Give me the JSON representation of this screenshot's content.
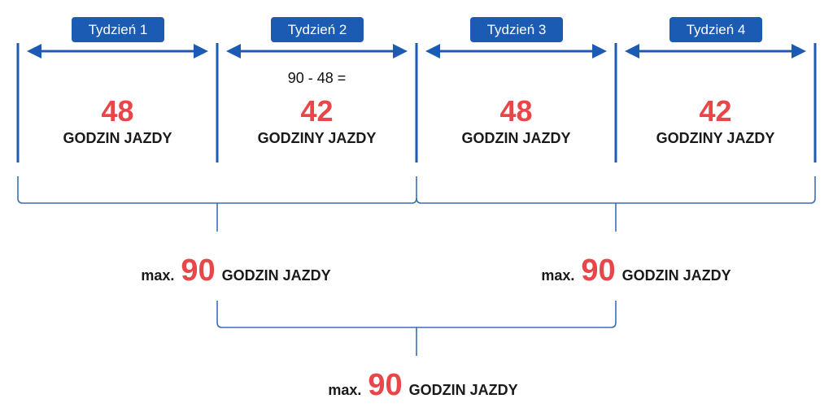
{
  "colors": {
    "accent": "#1c5bb3",
    "highlight": "#e8474a",
    "text": "#1a1a1a"
  },
  "weeks": [
    {
      "tag": "Tydzień 1",
      "equation": "",
      "value": "48",
      "label": "GODZIN JAZDY"
    },
    {
      "tag": "Tydzień 2",
      "equation": "90 - 48 =",
      "value": "42",
      "label": "GODZINY JAZDY"
    },
    {
      "tag": "Tydzień 3",
      "equation": "",
      "value": "48",
      "label": "GODZIN JAZDY"
    },
    {
      "tag": "Tydzień 4",
      "equation": "",
      "value": "42",
      "label": "GODZINY JAZDY"
    }
  ],
  "limits": [
    {
      "prefix": "max.",
      "value": "90",
      "label": "GODZIN JAZDY"
    },
    {
      "prefix": "max.",
      "value": "90",
      "label": "GODZIN JAZDY"
    },
    {
      "prefix": "max.",
      "value": "90",
      "label": "GODZIN JAZDY"
    }
  ]
}
